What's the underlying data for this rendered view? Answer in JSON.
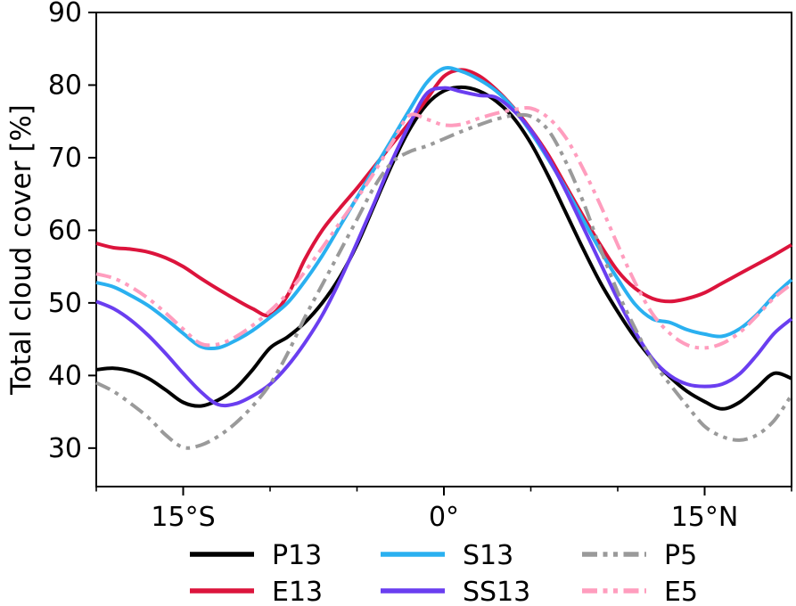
{
  "chart_data": {
    "type": "line",
    "title": "",
    "xlabel": "",
    "ylabel": "Total cloud cover [%]",
    "xlim": [
      -20,
      20
    ],
    "ylim": [
      24.7,
      90
    ],
    "grid": false,
    "legend_position": "below-center-3-columns",
    "x_unit": "latitude_degrees",
    "x": [
      -20,
      -19,
      -18,
      -17,
      -16,
      -15,
      -14,
      -13,
      -12,
      -11,
      -10,
      -9,
      -8,
      -7,
      -6,
      -5,
      -4,
      -3,
      -2,
      -1,
      0,
      1,
      2,
      3,
      4,
      5,
      6,
      7,
      8,
      9,
      10,
      11,
      12,
      13,
      14,
      15,
      16,
      17,
      18,
      19,
      20
    ],
    "xticks_major": [
      {
        "value": -15,
        "label": "15°S"
      },
      {
        "value": 0,
        "label": "0°"
      },
      {
        "value": 15,
        "label": "15°N"
      }
    ],
    "xticks_minor": [
      -20,
      -10,
      -5,
      5,
      10,
      20
    ],
    "yticks": [
      30,
      40,
      50,
      60,
      70,
      80,
      90
    ],
    "series": [
      {
        "name": "P13",
        "color": "#000000",
        "style": "solid",
        "values": [
          40.8,
          41.0,
          40.6,
          39.6,
          38.0,
          36.3,
          35.8,
          36.6,
          38.2,
          40.8,
          43.8,
          45.3,
          47.3,
          50.0,
          53.5,
          58.0,
          63.5,
          69.0,
          73.8,
          77.3,
          79.2,
          79.7,
          79.2,
          77.8,
          75.5,
          72.0,
          67.5,
          62.5,
          57.5,
          52.8,
          48.8,
          45.2,
          42.2,
          39.8,
          37.8,
          36.4,
          35.4,
          36.3,
          38.3,
          40.3,
          39.6
        ]
      },
      {
        "name": "E13",
        "color": "#dc143c",
        "style": "solid",
        "values": [
          58.2,
          57.6,
          57.4,
          57.0,
          56.2,
          55.0,
          53.4,
          51.9,
          50.5,
          49.2,
          48.3,
          51.0,
          56.0,
          60.0,
          63.0,
          65.8,
          68.8,
          71.8,
          74.8,
          78.0,
          81.2,
          82.1,
          81.3,
          79.4,
          76.9,
          73.9,
          70.4,
          66.2,
          62.0,
          58.0,
          54.4,
          52.0,
          50.6,
          50.2,
          50.6,
          51.4,
          52.7,
          54.0,
          55.3,
          56.6,
          58.0
        ]
      },
      {
        "name": "S13",
        "color": "#2ab0f0",
        "style": "solid",
        "values": [
          52.8,
          52.2,
          51.0,
          49.6,
          47.8,
          45.8,
          44.0,
          43.8,
          44.8,
          46.2,
          48.0,
          50.0,
          53.0,
          56.5,
          60.5,
          64.5,
          68.5,
          72.5,
          76.5,
          80.3,
          82.3,
          81.9,
          80.8,
          79.2,
          76.8,
          73.5,
          69.8,
          65.8,
          61.5,
          57.2,
          53.3,
          49.8,
          47.8,
          47.3,
          46.3,
          45.7,
          45.4,
          46.4,
          48.4,
          51.0,
          53.2
        ]
      },
      {
        "name": "SS13",
        "color": "#6a3ef0",
        "style": "solid",
        "values": [
          50.2,
          49.2,
          47.6,
          45.5,
          43.0,
          40.3,
          37.8,
          36.0,
          36.1,
          37.2,
          38.8,
          41.3,
          44.5,
          48.3,
          53.0,
          58.3,
          63.8,
          69.5,
          74.5,
          78.8,
          79.6,
          79.1,
          78.6,
          78.3,
          76.5,
          73.8,
          70.0,
          65.5,
          60.5,
          55.5,
          50.5,
          46.0,
          42.3,
          40.0,
          38.8,
          38.5,
          38.8,
          40.2,
          42.8,
          45.8,
          47.8
        ]
      },
      {
        "name": "P5",
        "color": "#9a9a9a",
        "style": "dashdotdot",
        "values": [
          39.0,
          37.8,
          36.1,
          34.2,
          31.8,
          30.1,
          30.4,
          31.6,
          33.4,
          35.8,
          38.8,
          43.0,
          48.0,
          52.5,
          57.0,
          61.5,
          66.0,
          69.3,
          70.8,
          71.6,
          72.6,
          73.6,
          74.5,
          75.3,
          75.8,
          75.7,
          73.8,
          69.5,
          64.0,
          57.5,
          51.5,
          46.5,
          42.0,
          38.8,
          35.8,
          33.0,
          31.6,
          31.1,
          31.8,
          33.8,
          37.3
        ]
      },
      {
        "name": "E5",
        "color": "#ff9dbe",
        "style": "dashdotdot",
        "values": [
          54.0,
          53.4,
          52.2,
          50.6,
          48.6,
          46.4,
          44.4,
          44.3,
          45.3,
          46.9,
          48.9,
          51.3,
          54.3,
          57.6,
          61.0,
          64.4,
          68.0,
          72.0,
          75.8,
          75.3,
          74.5,
          74.6,
          75.4,
          76.1,
          76.6,
          76.8,
          75.5,
          72.8,
          68.5,
          63.5,
          58.0,
          52.8,
          48.5,
          45.8,
          44.2,
          43.8,
          44.4,
          45.9,
          48.2,
          50.7,
          52.6
        ]
      }
    ],
    "legend_columns": [
      [
        "P13",
        "E13"
      ],
      [
        "S13",
        "SS13"
      ],
      [
        "P5",
        "E5"
      ]
    ]
  },
  "style_hints": {
    "axis_color": "#000000",
    "background": "#ffffff",
    "line_width": 4
  }
}
